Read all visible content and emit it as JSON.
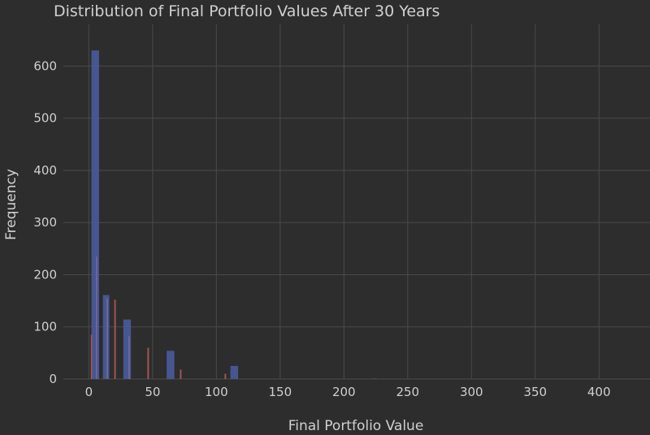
{
  "chart_data": {
    "type": "bar",
    "title": "Distribution of Final Portfolio Values After 30 Years",
    "xlabel": "Final Portfolio Value",
    "ylabel": "Frequency",
    "xlim": [
      -20,
      440
    ],
    "ylim": [
      0,
      680
    ],
    "xticks": [
      0,
      50,
      100,
      150,
      200,
      250,
      300,
      350,
      400
    ],
    "yticks": [
      0,
      100,
      200,
      300,
      400,
      500,
      600
    ],
    "grid": true,
    "legend": "none",
    "colors": {
      "blue": "#4a5a9a",
      "red": "#b05a5a",
      "purple": "#7a6aa0",
      "background": "#2d2d2d"
    },
    "series": [
      {
        "color": "blue",
        "bars": [
          {
            "x": 5,
            "width": 6,
            "value": 630
          },
          {
            "x": 13.5,
            "width": 5,
            "value": 161
          },
          {
            "x": 30,
            "width": 6,
            "value": 114
          },
          {
            "x": 64,
            "width": 6,
            "value": 54
          },
          {
            "x": 114,
            "width": 6,
            "value": 25
          },
          {
            "x": 224,
            "width": 4,
            "value": 1
          }
        ]
      },
      {
        "color": "red",
        "bars": [
          {
            "x": 2,
            "width": 1,
            "value": 85
          },
          {
            "x": 20.5,
            "width": 1.2,
            "value": 152
          },
          {
            "x": 46.5,
            "width": 1.2,
            "value": 60
          },
          {
            "x": 72,
            "width": 1.2,
            "value": 18
          },
          {
            "x": 107,
            "width": 1.2,
            "value": 10
          }
        ]
      },
      {
        "color": "purple",
        "bars": [
          {
            "x": 6,
            "width": 1,
            "value": 235
          },
          {
            "x": 14.5,
            "width": 1,
            "value": 155
          },
          {
            "x": 31.5,
            "width": 1,
            "value": 82
          }
        ]
      }
    ]
  }
}
